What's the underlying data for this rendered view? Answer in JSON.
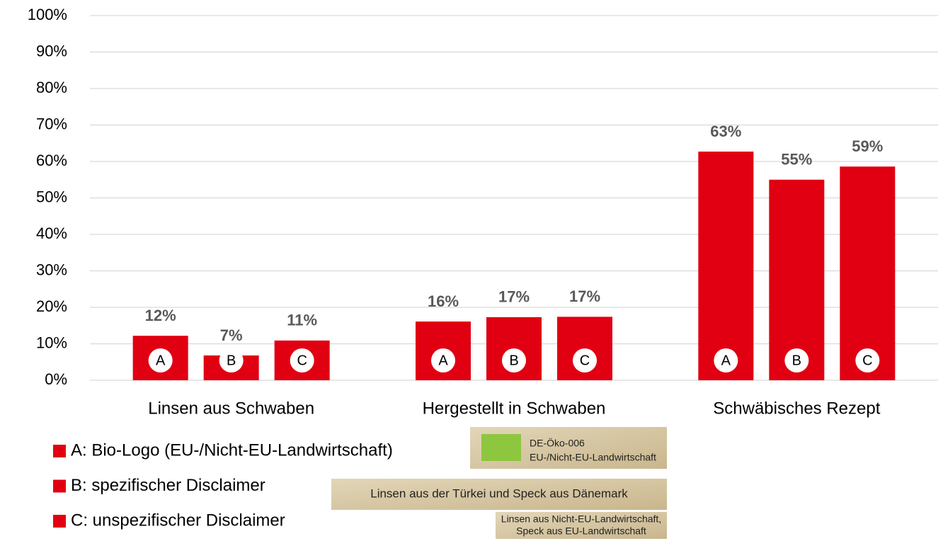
{
  "chart_data": {
    "type": "bar",
    "categories": [
      "Linsen aus Schwaben",
      "Hergestellt in Schwaben",
      "Schwäbisches Rezept"
    ],
    "series": [
      {
        "name": "A: Bio-Logo (EU-/Nicht-EU-Landwirtschaft)",
        "letter": "A",
        "color": "#e00012",
        "values": [
          12.2,
          16.1,
          62.7
        ],
        "value_labels": [
          "12%",
          "16%",
          "63%"
        ]
      },
      {
        "name": "B: spezifischer Disclaimer",
        "letter": "B",
        "color": "#e00012",
        "values": [
          6.8,
          17.3,
          55.0
        ],
        "value_labels": [
          "7%",
          "17%",
          "55%"
        ]
      },
      {
        "name": "C: unspezifischer Disclaimer",
        "letter": "C",
        "color": "#e00012",
        "values": [
          10.9,
          17.4,
          58.6
        ],
        "value_labels": [
          "11%",
          "17%",
          "59%"
        ]
      }
    ],
    "ylim": [
      0,
      100
    ],
    "yticks": [
      {
        "value": 0,
        "label": "0%"
      },
      {
        "value": 10,
        "label": "10%"
      },
      {
        "value": 20,
        "label": "20%"
      },
      {
        "value": 30,
        "label": "30%"
      },
      {
        "value": 40,
        "label": "40%"
      },
      {
        "value": 50,
        "label": "50%"
      },
      {
        "value": 60,
        "label": "60%"
      },
      {
        "value": 70,
        "label": "70%"
      },
      {
        "value": 80,
        "label": "80%"
      },
      {
        "value": 90,
        "label": "90%"
      },
      {
        "value": 100,
        "label": "100%"
      }
    ],
    "grid": true,
    "legend_images": [
      {
        "lines": [
          "DE-Öko-006",
          "EU-/Nicht-EU-Landwirtschaft"
        ]
      },
      {
        "lines": [
          "Linsen aus der Türkei und Speck aus Dänemark"
        ]
      },
      {
        "lines": [
          "Linsen aus Nicht-EU-Landwirtschaft,",
          "Speck aus EU-Landwirtschaft"
        ]
      }
    ]
  }
}
